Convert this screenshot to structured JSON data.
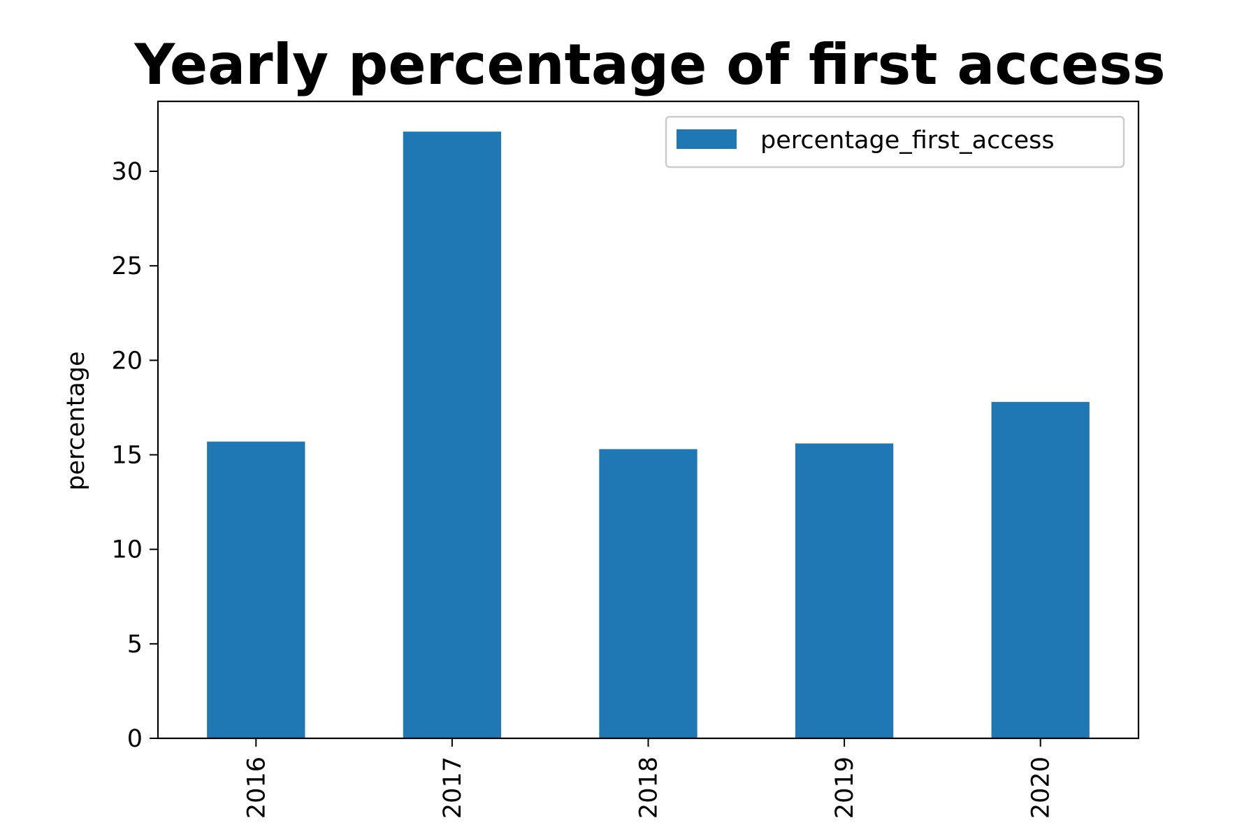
{
  "chart_data": {
    "type": "bar",
    "title": "Yearly percentage of first access",
    "xlabel": "",
    "ylabel": "percentage",
    "categories": [
      "2016",
      "2017",
      "2018",
      "2019",
      "2020"
    ],
    "series": [
      {
        "name": "percentage_first_access",
        "color": "#1f77b4",
        "values": [
          15.7,
          32.1,
          15.3,
          15.6,
          17.8
        ]
      }
    ],
    "ylim": [
      0,
      33.7
    ],
    "yticks": [
      0,
      5,
      10,
      15,
      20,
      25,
      30
    ],
    "legend_position": "top-right",
    "grid": false
  }
}
